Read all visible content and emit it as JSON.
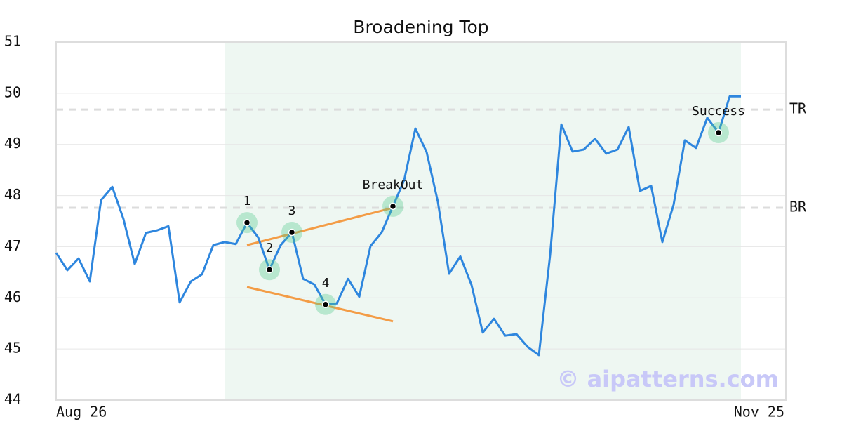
{
  "chart_data": {
    "type": "line",
    "title": "Broadening Top",
    "categories": [
      "Aug 26",
      null,
      null,
      null,
      null,
      null,
      null,
      null,
      null,
      null,
      null,
      null,
      null,
      null,
      null,
      null,
      null,
      null,
      null,
      null,
      null,
      null,
      null,
      null,
      null,
      null,
      null,
      null,
      null,
      null,
      null,
      null,
      null,
      null,
      null,
      null,
      null,
      null,
      null,
      null,
      null,
      null,
      null,
      null,
      null,
      null,
      null,
      null,
      null,
      null,
      null,
      null,
      null,
      null,
      null,
      null,
      null,
      null,
      null,
      null,
      null,
      "Nov 25"
    ],
    "values": [
      46.88,
      46.54,
      46.77,
      46.32,
      47.91,
      48.17,
      47.54,
      46.66,
      47.27,
      47.32,
      47.4,
      45.91,
      46.32,
      46.46,
      47.03,
      47.09,
      47.05,
      47.47,
      47.18,
      46.55,
      47.03,
      47.28,
      46.37,
      46.26,
      45.87,
      45.89,
      46.37,
      46.02,
      47.01,
      47.28,
      47.79,
      48.3,
      49.31,
      48.85,
      47.88,
      46.47,
      46.81,
      46.25,
      45.32,
      45.59,
      45.26,
      45.29,
      45.04,
      44.88,
      46.84,
      49.39,
      48.86,
      48.9,
      49.11,
      48.82,
      48.9,
      49.34,
      48.09,
      48.19,
      47.09,
      47.82,
      49.08,
      48.93,
      49.52,
      49.23,
      49.94,
      49.94
    ],
    "color": "#2e86de",
    "ylim": [
      44,
      51
    ],
    "yticks": [
      44,
      45,
      46,
      47,
      48,
      49,
      50,
      51
    ],
    "grid": true,
    "shaded_region": {
      "start": 15,
      "end": 61,
      "color": "#eef7f2"
    },
    "reference_lines": [
      {
        "label": "TR",
        "value": 49.68
      },
      {
        "label": "BR",
        "value": 47.76
      }
    ],
    "trendlines": [
      {
        "start": 17,
        "end": 30,
        "values": [
          47.03,
          47.76
        ],
        "color": "#f39c46"
      },
      {
        "start": 17,
        "end": 30,
        "values": [
          46.21,
          45.54
        ],
        "color": "#f39c46"
      }
    ],
    "markers": [
      {
        "label": "1",
        "index": 17
      },
      {
        "label": "2",
        "index": 19
      },
      {
        "label": "3",
        "index": 21
      },
      {
        "label": "4",
        "index": 24
      },
      {
        "label": "BreakOut",
        "index": 30
      },
      {
        "label": "Success",
        "index": 59
      }
    ],
    "watermark": "© aipatterns.com"
  }
}
